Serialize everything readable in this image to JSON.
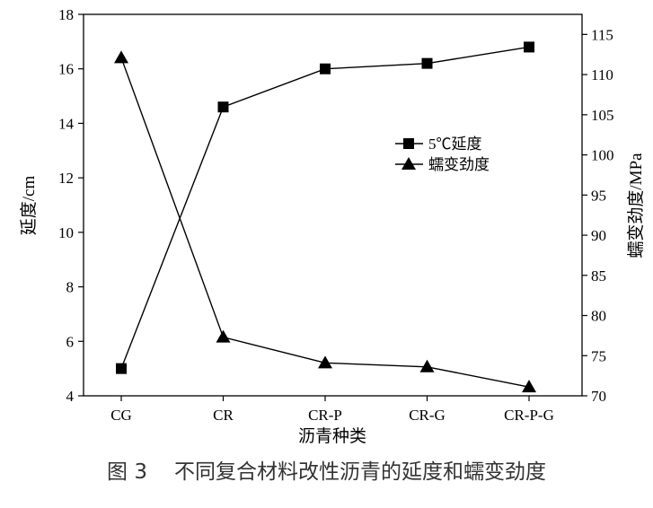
{
  "chart_data": {
    "type": "line",
    "categories": [
      "CG",
      "CR",
      "CR-P",
      "CR-G",
      "CR-P-G"
    ],
    "xlabel": "沥青种类",
    "ylabel": "延度/cm",
    "y2label": "蠕变劲度/MPa",
    "ylim": [
      4,
      18
    ],
    "y2lim": [
      70,
      117.5
    ],
    "yticks": [
      4,
      6,
      8,
      10,
      12,
      14,
      16,
      18
    ],
    "y2ticks": [
      70,
      75,
      80,
      85,
      90,
      95,
      100,
      105,
      110,
      115
    ],
    "series": [
      {
        "name": "5℃延度",
        "y_axis": "left",
        "marker": "square",
        "values": [
          5.0,
          14.6,
          16.0,
          16.2,
          16.8
        ]
      },
      {
        "name": "蠕变劲度",
        "y_axis": "right",
        "marker": "triangle",
        "values": [
          112.1,
          77.3,
          74.1,
          73.6,
          71.1
        ]
      }
    ],
    "legend": "center-right",
    "grid": false,
    "colors": {
      "series": "#000000",
      "axes": "#000000"
    }
  },
  "caption": {
    "figure_number": "图 3",
    "text": "不同复合材料改性沥青的延度和蠕变劲度",
    "color": "#333333"
  }
}
